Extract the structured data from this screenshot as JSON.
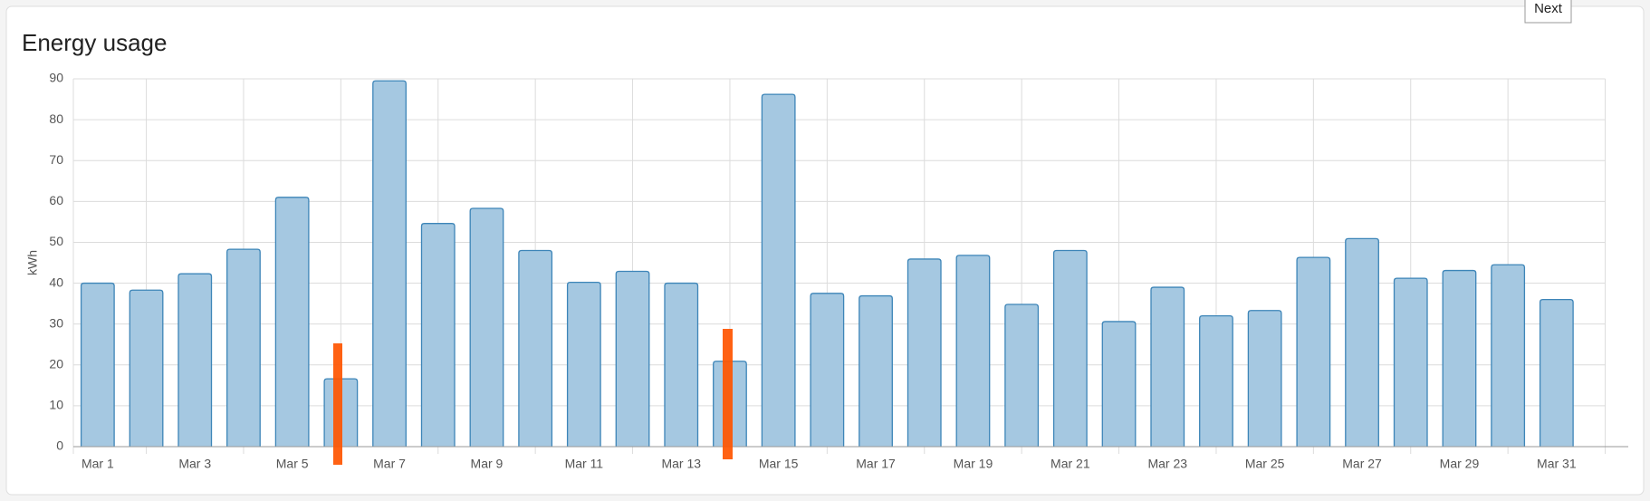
{
  "ui": {
    "next_button": "Next"
  },
  "chart_data": {
    "type": "bar",
    "title": "Energy usage",
    "y_label": "kWh",
    "categories": [
      "Mar 1",
      null,
      "Mar 3",
      null,
      "Mar 5",
      null,
      "Mar 7",
      null,
      "Mar 9",
      null,
      "Mar 11",
      null,
      "Mar 13",
      null,
      "Mar 15",
      null,
      "Mar 17",
      null,
      "Mar 19",
      null,
      "Mar 21",
      null,
      "Mar 23",
      null,
      "Mar 25",
      null,
      "Mar 27",
      null,
      "Mar 29",
      null,
      "Mar 31"
    ],
    "values": [
      40,
      38.3,
      42.3,
      48.3,
      61,
      16.6,
      89.5,
      54.6,
      58.3,
      48,
      40.2,
      42.9,
      40,
      20.9,
      86.2,
      37.5,
      36.9,
      45.9,
      46.8,
      34.8,
      48,
      30.6,
      39,
      32,
      33.3,
      46.3,
      50.9,
      41.2,
      43.1,
      44.5,
      36
    ],
    "color": "#a5c8e1",
    "edge_color": "#3d85b8",
    "ylim": [
      0,
      90
    ],
    "yticks": [
      0,
      10,
      20,
      30,
      40,
      50,
      60,
      70,
      80,
      90
    ],
    "grid": true
  }
}
